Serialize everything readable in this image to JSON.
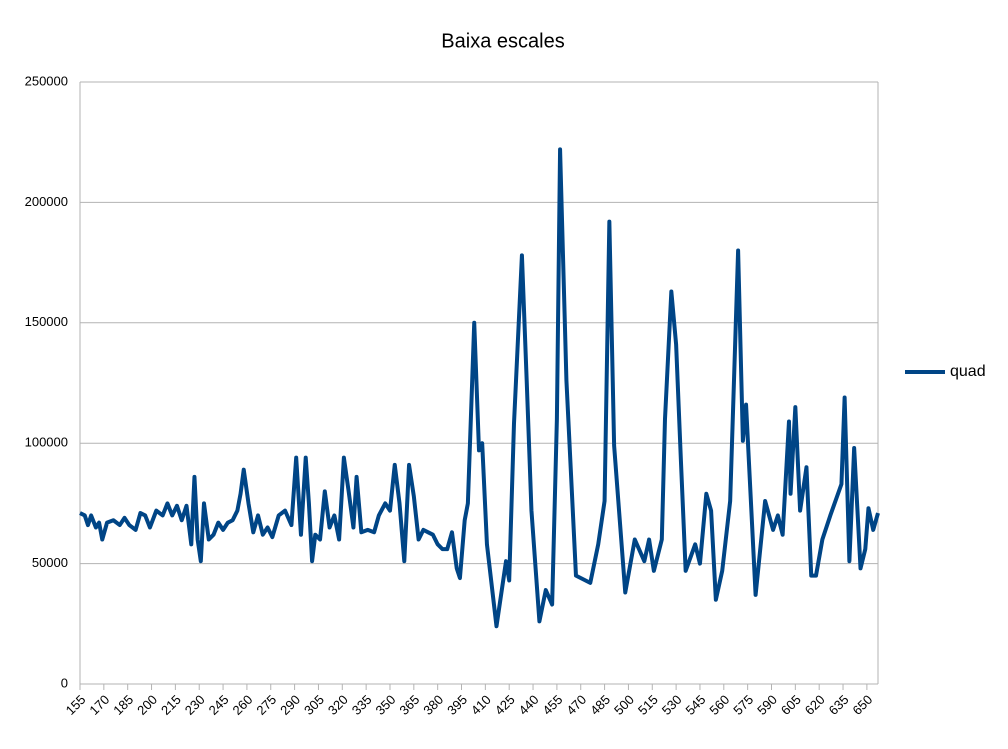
{
  "chart_data": {
    "type": "line",
    "title": "Baixa escales",
    "x": [
      155,
      158,
      160,
      162,
      165,
      167,
      169,
      172,
      176,
      180,
      183,
      186,
      190,
      193,
      196,
      199,
      203,
      207,
      210,
      213,
      216,
      219,
      222,
      225,
      227,
      229,
      231,
      233,
      236,
      239,
      242,
      245,
      248,
      251,
      254,
      256,
      258,
      261,
      264,
      267,
      270,
      273,
      276,
      280,
      284,
      288,
      291,
      294,
      297,
      299,
      301,
      303,
      306,
      309,
      312,
      315,
      318,
      321,
      324,
      327,
      329,
      332,
      336,
      340,
      343,
      347,
      350,
      353,
      356,
      359,
      362,
      365,
      368,
      371,
      374,
      377,
      380,
      383,
      386,
      389,
      392,
      394,
      397,
      399,
      403,
      406,
      408,
      411,
      417,
      423,
      425,
      428,
      433,
      436,
      439,
      444,
      448,
      452,
      455,
      457,
      461,
      467,
      476,
      481,
      485,
      488,
      491,
      498,
      504,
      510,
      513,
      516,
      521,
      523,
      527,
      530,
      533,
      536,
      542,
      545,
      549,
      552,
      555,
      559,
      564,
      569,
      572,
      574,
      580,
      586,
      591,
      594,
      597,
      601,
      602,
      605,
      608,
      612,
      615,
      618,
      622,
      627,
      634,
      636,
      639,
      642,
      646,
      649,
      651,
      654,
      657
    ],
    "series": [
      {
        "name": "quad",
        "color": "#004586",
        "values": [
          71000,
          70000,
          66000,
          70000,
          65000,
          67000,
          60000,
          67000,
          68000,
          66000,
          69000,
          66000,
          64000,
          71000,
          70000,
          65000,
          72000,
          70000,
          75000,
          70000,
          74000,
          68000,
          74000,
          58000,
          86000,
          60000,
          51000,
          75000,
          60000,
          62000,
          67000,
          64000,
          67000,
          68000,
          72000,
          79000,
          89000,
          75000,
          63000,
          70000,
          62000,
          65000,
          61000,
          70000,
          72000,
          66000,
          94000,
          62000,
          94000,
          75000,
          51000,
          62000,
          60000,
          80000,
          65000,
          70000,
          60000,
          94000,
          80000,
          65000,
          86000,
          63000,
          64000,
          63000,
          70000,
          75000,
          72000,
          91000,
          75000,
          51000,
          91000,
          78000,
          60000,
          64000,
          63000,
          62000,
          58000,
          56000,
          56000,
          63000,
          48000,
          44000,
          68000,
          75000,
          150000,
          97000,
          100000,
          58000,
          24000,
          51000,
          43000,
          108000,
          178000,
          126000,
          72000,
          26000,
          39000,
          33000,
          110000,
          222000,
          126000,
          45000,
          42000,
          58000,
          76000,
          192000,
          99000,
          38000,
          60000,
          51000,
          60000,
          47000,
          60000,
          110000,
          163000,
          141000,
          93000,
          47000,
          58000,
          50000,
          79000,
          72000,
          35000,
          47000,
          76000,
          180000,
          101000,
          116000,
          37000,
          76000,
          64000,
          70000,
          62000,
          109000,
          79000,
          115000,
          72000,
          90000,
          45000,
          45000,
          60000,
          70000,
          83000,
          119000,
          51000,
          98000,
          48000,
          56000,
          73000,
          64000,
          71000
        ]
      }
    ],
    "xlim": [
      155,
      657
    ],
    "xticks": [
      155,
      170,
      185,
      200,
      215,
      230,
      245,
      260,
      275,
      290,
      305,
      320,
      335,
      350,
      365,
      380,
      395,
      410,
      425,
      440,
      455,
      470,
      485,
      500,
      515,
      530,
      545,
      560,
      575,
      590,
      605,
      620,
      635,
      650
    ],
    "ylim": [
      0,
      250000
    ],
    "yticks": [
      0,
      50000,
      100000,
      150000,
      200000,
      250000
    ],
    "grid": true,
    "legend": "right"
  }
}
